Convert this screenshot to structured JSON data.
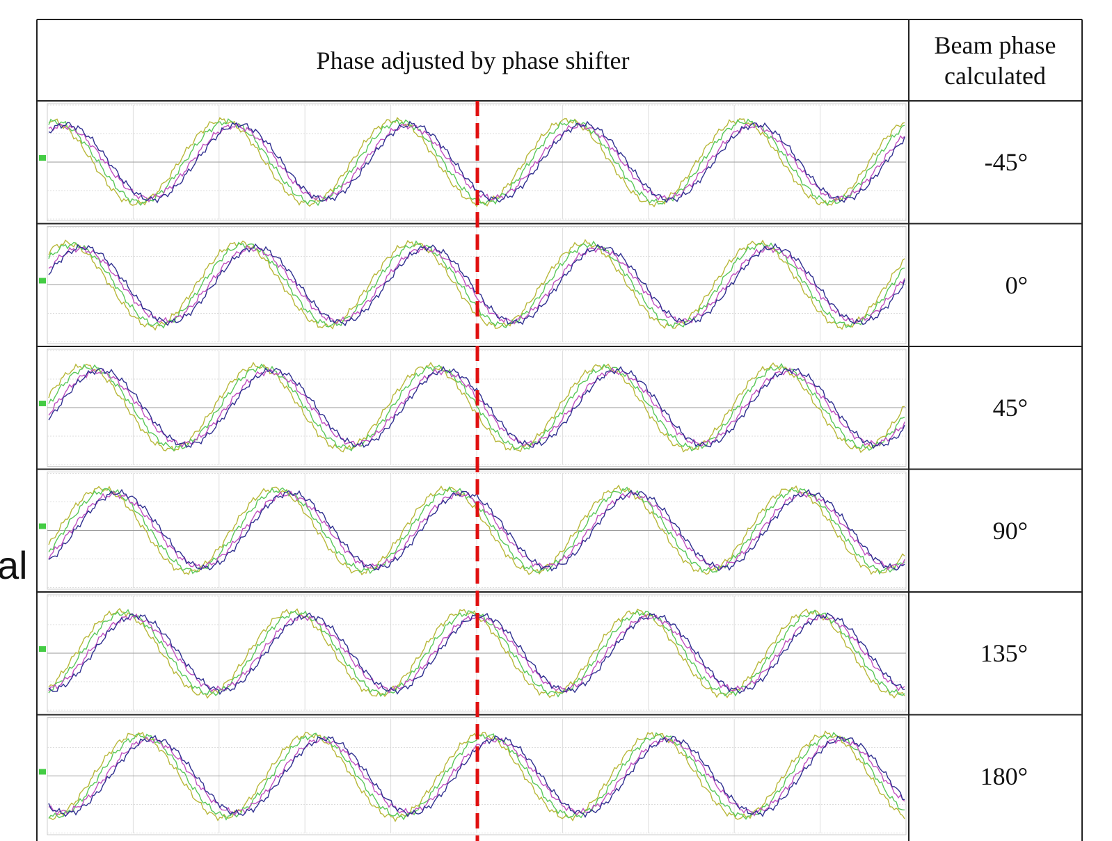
{
  "table": {
    "header": {
      "waveforms": "Phase adjusted by phase shifter",
      "beam_phase": "Beam phase calculated"
    },
    "rows": [
      "-45°",
      "0°",
      "45°",
      "90°",
      "135°",
      "180°"
    ]
  },
  "side_text": "al"
}
